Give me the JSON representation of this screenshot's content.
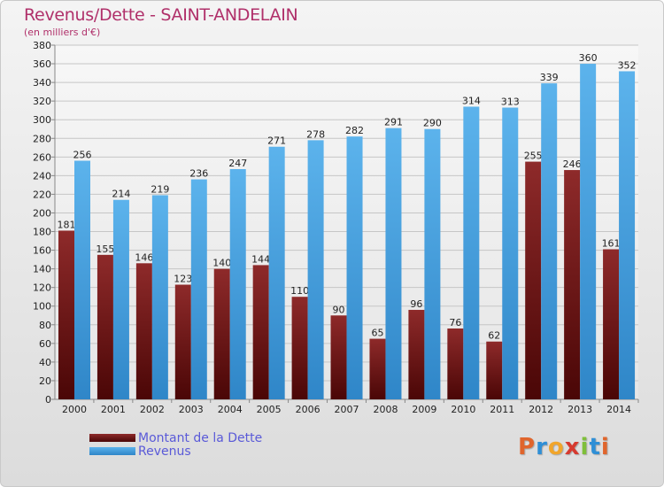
{
  "header": {
    "title": "Revenus/Dette - SAINT-ANDELAIN",
    "subtitle": "(en milliers d'€)"
  },
  "colors": {
    "dette": "#7a1a1a",
    "revenus": "#4aa3e0",
    "axis_text": "#222222",
    "grid": "#c6c6c6"
  },
  "logo": {
    "letters": [
      {
        "ch": "P",
        "color": "#e0652c"
      },
      {
        "ch": "r",
        "color": "#2f8fd6"
      },
      {
        "ch": "o",
        "color": "#f1a52b"
      },
      {
        "ch": "x",
        "color": "#d63a2f"
      },
      {
        "ch": "i",
        "color": "#7fbf3a"
      },
      {
        "ch": "t",
        "color": "#2f8fd6"
      },
      {
        "ch": "i",
        "color": "#e0652c"
      }
    ]
  },
  "chart_data": {
    "type": "bar",
    "title": "Revenus/Dette - SAINT-ANDELAIN",
    "subtitle": "(en milliers d'€)",
    "categories": [
      "2000",
      "2001",
      "2002",
      "2003",
      "2004",
      "2005",
      "2006",
      "2007",
      "2008",
      "2009",
      "2010",
      "2011",
      "2012",
      "2013",
      "2014"
    ],
    "series": [
      {
        "name": "Montant de la Dette",
        "values": [
          181,
          155,
          146,
          123,
          140,
          144,
          110,
          90,
          65,
          96,
          76,
          62,
          255,
          246,
          161
        ]
      },
      {
        "name": "Revenus",
        "values": [
          256,
          214,
          219,
          236,
          247,
          271,
          278,
          282,
          291,
          290,
          314,
          313,
          339,
          360,
          352
        ]
      }
    ],
    "ylim": [
      0,
      380
    ],
    "ytick_step": 20,
    "grid": true,
    "legend_position": "bottom-left"
  }
}
